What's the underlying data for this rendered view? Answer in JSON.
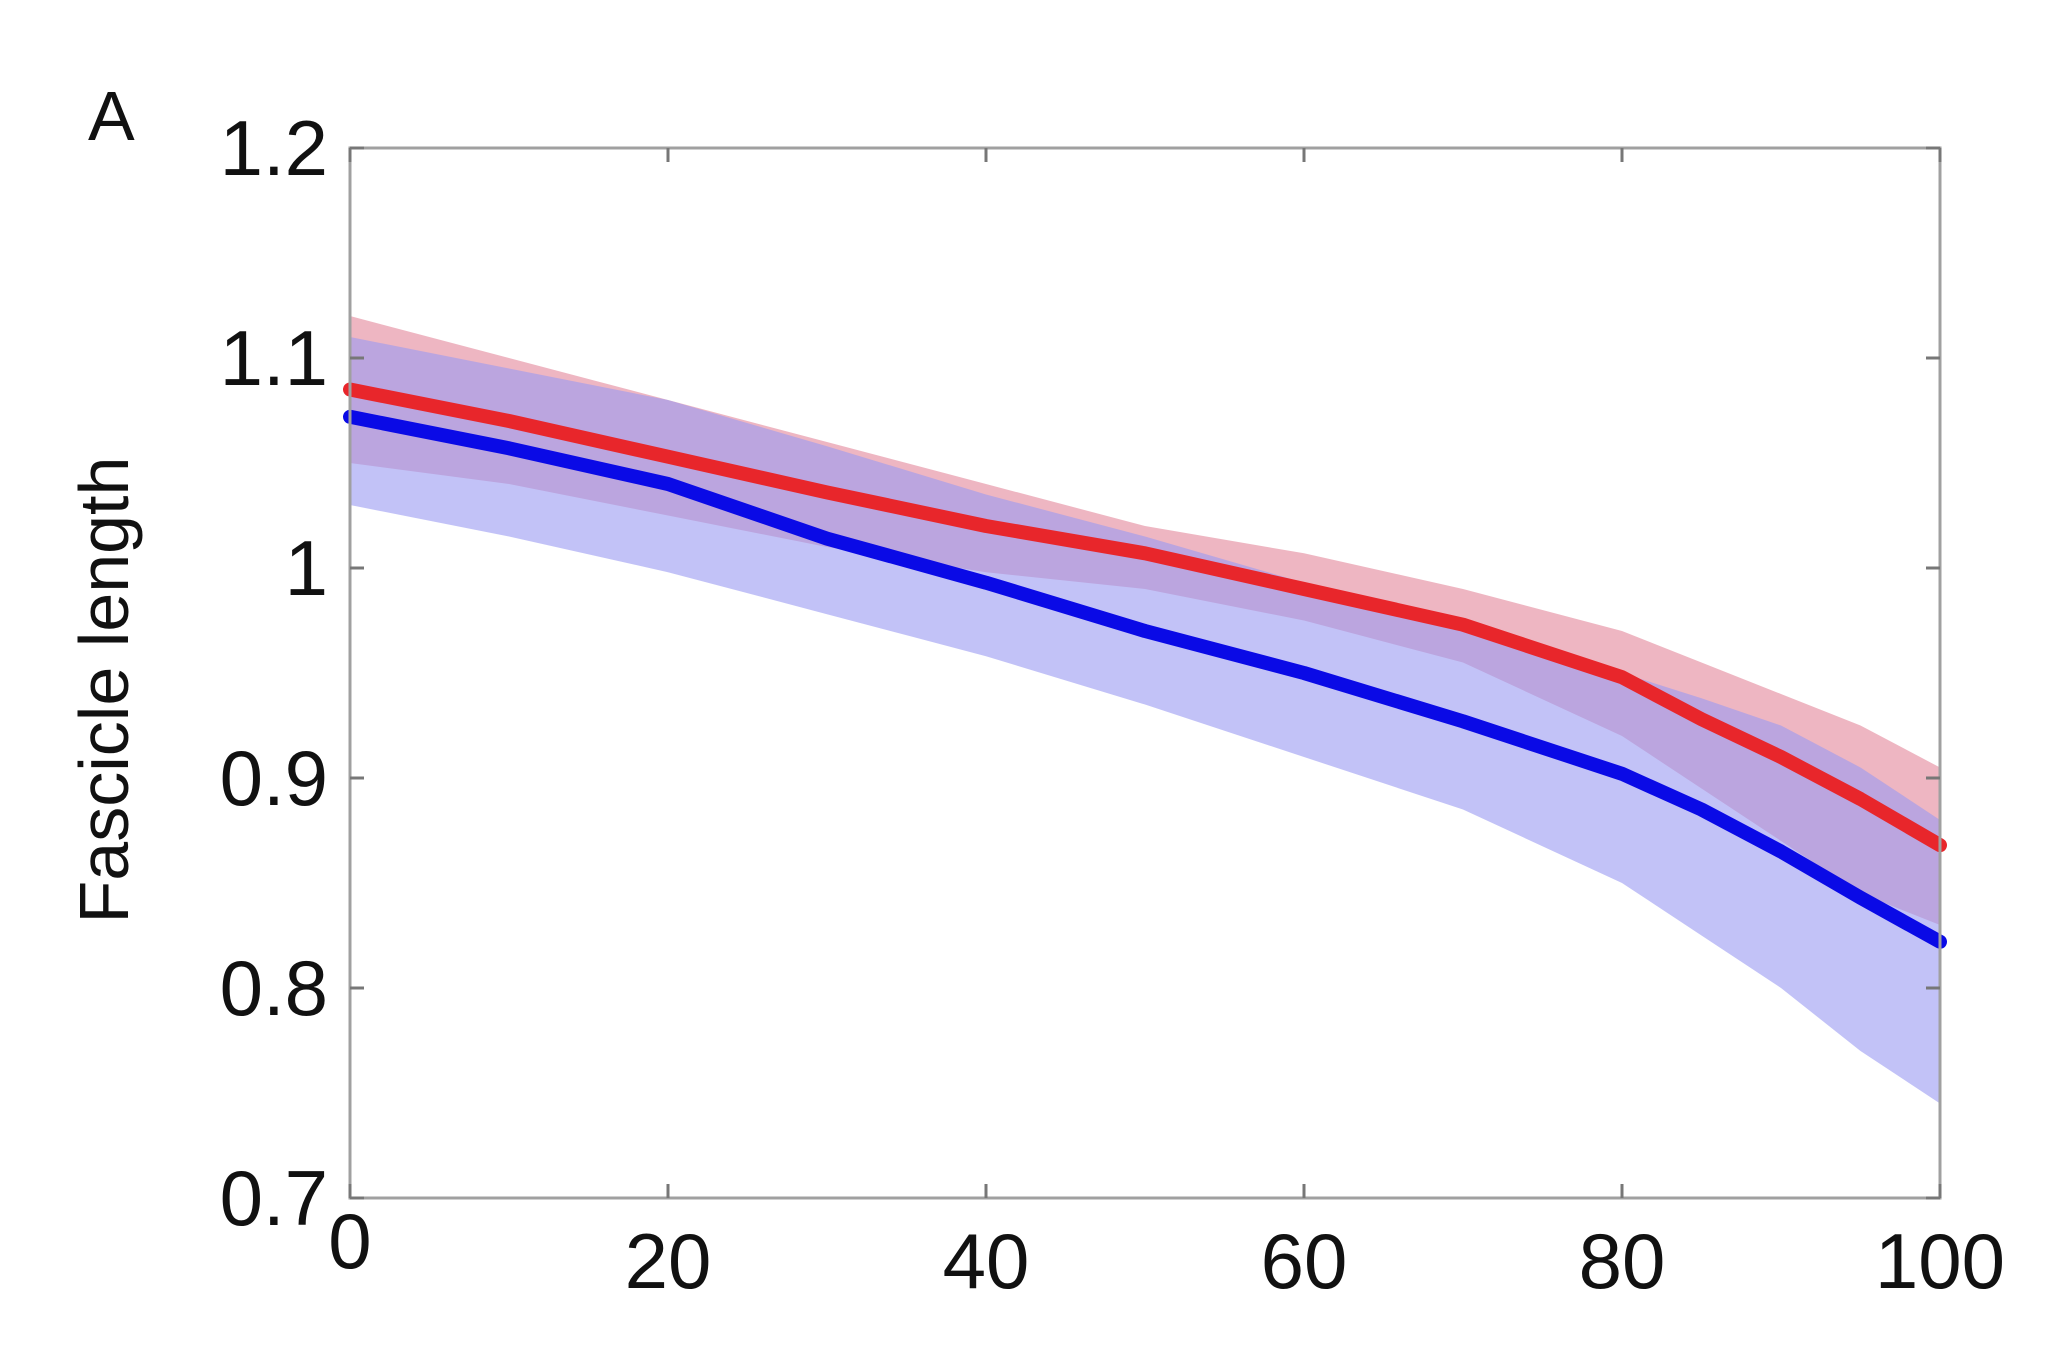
{
  "chart_data": {
    "type": "line",
    "panel_label": "A",
    "title": "",
    "xlabel": "",
    "ylabel": "Fascicle length",
    "xlim": [
      0,
      100
    ],
    "ylim": [
      0.7,
      1.2
    ],
    "grid": false,
    "legend": "none",
    "x_ticks": [
      {
        "value": 0,
        "label": "0"
      },
      {
        "value": 20,
        "label": "20"
      },
      {
        "value": 40,
        "label": "40"
      },
      {
        "value": 60,
        "label": "60"
      },
      {
        "value": 80,
        "label": "80"
      },
      {
        "value": 100,
        "label": "100"
      }
    ],
    "y_ticks": [
      {
        "value": 0.7,
        "label": "0.7"
      },
      {
        "value": 0.8,
        "label": "0.8"
      },
      {
        "value": 0.9,
        "label": "0.9"
      },
      {
        "value": 1.0,
        "label": "1"
      },
      {
        "value": 1.1,
        "label": "1.1"
      },
      {
        "value": 1.2,
        "label": "1.2"
      }
    ],
    "x": [
      0,
      10,
      20,
      30,
      40,
      50,
      60,
      70,
      80,
      85,
      90,
      95,
      100
    ],
    "series": [
      {
        "color": "#e8262b",
        "band_color": "#e07a8f",
        "values": [
          1.085,
          1.07,
          1.053,
          1.036,
          1.02,
          1.007,
          0.99,
          0.973,
          0.948,
          0.928,
          0.91,
          0.89,
          0.868
        ],
        "upper": [
          1.12,
          1.1,
          1.08,
          1.06,
          1.04,
          1.02,
          1.007,
          0.99,
          0.97,
          0.955,
          0.94,
          0.925,
          0.905
        ],
        "lower": [
          1.05,
          1.04,
          1.025,
          1.01,
          0.998,
          0.99,
          0.975,
          0.955,
          0.92,
          0.895,
          0.87,
          0.845,
          0.83
        ]
      },
      {
        "color": "#0a0ae6",
        "band_color": "#9a9af2",
        "values": [
          1.072,
          1.057,
          1.04,
          1.014,
          0.993,
          0.97,
          0.95,
          0.927,
          0.902,
          0.885,
          0.865,
          0.843,
          0.822
        ],
        "upper": [
          1.11,
          1.095,
          1.08,
          1.058,
          1.035,
          1.015,
          0.993,
          0.97,
          0.95,
          0.938,
          0.925,
          0.905,
          0.88
        ],
        "lower": [
          1.03,
          1.015,
          0.998,
          0.978,
          0.958,
          0.935,
          0.91,
          0.885,
          0.85,
          0.825,
          0.8,
          0.77,
          0.745
        ]
      }
    ]
  }
}
